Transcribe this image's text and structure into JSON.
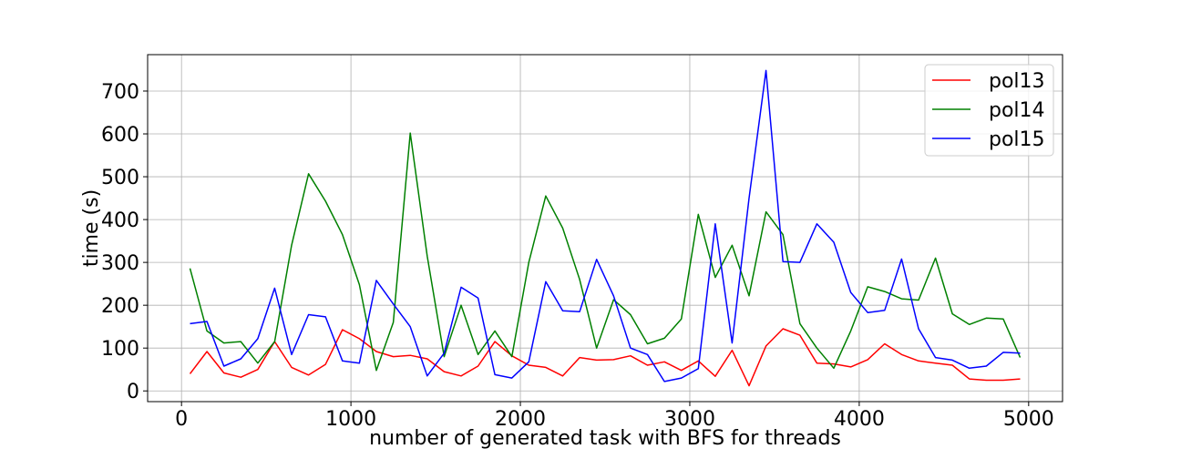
{
  "chart_data": {
    "type": "line",
    "title": "",
    "xlabel": "number of generated task with BFS for threads",
    "ylabel": "time (s)",
    "xlim": [
      -200,
      5200
    ],
    "ylim": [
      -25,
      785
    ],
    "xticks": [
      0,
      1000,
      2000,
      3000,
      4000,
      5000
    ],
    "yticks": [
      0,
      100,
      200,
      300,
      400,
      500,
      600,
      700
    ],
    "grid": true,
    "legend_position": "top-right",
    "x": [
      50,
      150,
      250,
      350,
      450,
      550,
      650,
      750,
      850,
      950,
      1050,
      1150,
      1250,
      1350,
      1450,
      1550,
      1650,
      1750,
      1850,
      1950,
      2050,
      2150,
      2250,
      2350,
      2450,
      2550,
      2650,
      2750,
      2850,
      2950,
      3050,
      3150,
      3250,
      3350,
      3450,
      3550,
      3650,
      3750,
      3850,
      3950,
      4050,
      4150,
      4250,
      4350,
      4450,
      4550,
      4650,
      4750,
      4850,
      4950
    ],
    "series": [
      {
        "name": "pol13",
        "color": "#ff0000",
        "values": [
          40,
          92,
          42,
          32,
          50,
          115,
          55,
          37,
          62,
          143,
          122,
          92,
          80,
          83,
          75,
          45,
          35,
          58,
          115,
          82,
          60,
          55,
          35,
          78,
          72,
          73,
          82,
          60,
          68,
          48,
          70,
          34,
          95,
          12,
          105,
          145,
          130,
          65,
          63,
          56,
          73,
          110,
          85,
          70,
          65,
          60,
          28,
          25,
          25,
          28
        ]
      },
      {
        "name": "pol14",
        "color": "#008000",
        "values": [
          286,
          140,
          112,
          115,
          65,
          115,
          340,
          507,
          443,
          365,
          248,
          48,
          160,
          602,
          315,
          80,
          200,
          85,
          140,
          80,
          300,
          455,
          380,
          260,
          100,
          213,
          178,
          110,
          123,
          168,
          412,
          265,
          340,
          222,
          418,
          365,
          157,
          100,
          53,
          140,
          243,
          232,
          215,
          212,
          310,
          180,
          155,
          170,
          168,
          78
        ]
      },
      {
        "name": "pol15",
        "color": "#0000ff",
        "values": [
          157,
          162,
          58,
          75,
          122,
          240,
          85,
          178,
          173,
          70,
          65,
          258,
          203,
          150,
          35,
          88,
          242,
          217,
          38,
          30,
          68,
          255,
          187,
          185,
          307,
          222,
          100,
          85,
          22,
          30,
          52,
          390,
          112,
          450,
          748,
          302,
          300,
          390,
          347,
          230,
          183,
          188,
          308,
          145,
          78,
          72,
          53,
          58,
          90,
          88
        ]
      }
    ]
  }
}
